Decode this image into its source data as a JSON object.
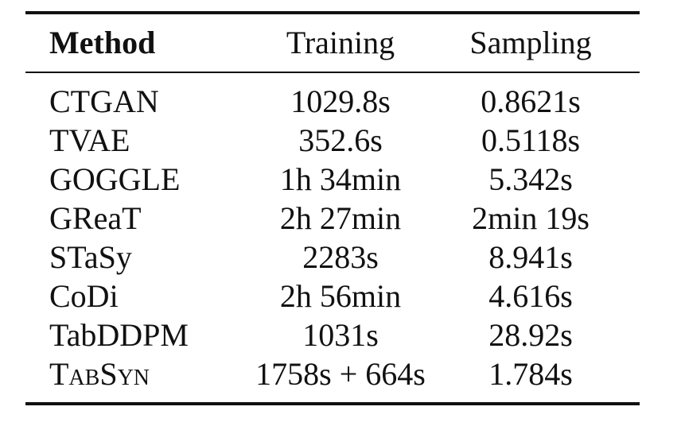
{
  "table": {
    "headers": {
      "method": "Method",
      "training": "Training",
      "sampling": "Sampling"
    },
    "rows": [
      {
        "method": "CTGAN",
        "training": "1029.8s",
        "sampling": "0.8621s"
      },
      {
        "method": "TVAE",
        "training": "352.6s",
        "sampling": "0.5118s"
      },
      {
        "method": "GOGGLE",
        "training": "1h 34min",
        "sampling": "5.342s"
      },
      {
        "method": "GReaT",
        "training": "2h 27min",
        "sampling": "2min 19s"
      },
      {
        "method": "STaSy",
        "training": "2283s",
        "sampling": "8.941s"
      },
      {
        "method": "CoDi",
        "training": "2h 56min",
        "sampling": "4.616s"
      },
      {
        "method": "TabDDPM",
        "training": "1031s",
        "sampling": "28.92s"
      },
      {
        "method": "TabSyn",
        "training": "1758s + 664s",
        "sampling": "1.784s"
      }
    ]
  }
}
